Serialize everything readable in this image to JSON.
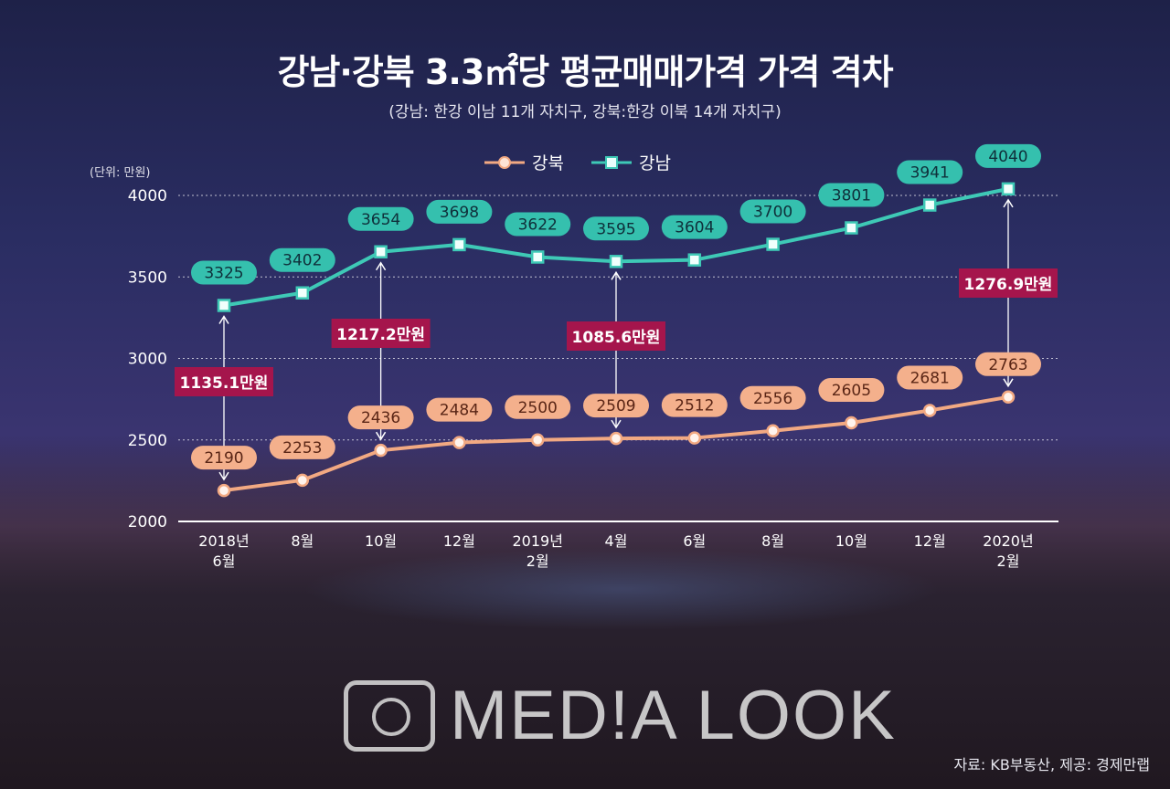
{
  "chart_data": {
    "type": "line",
    "title": "강남·강북 3.3㎡당 평균매매가격 가격 격차",
    "subtitle": "(강남: 한강 이남 11개 자치구, 강북:한강 이북 14개 자치구)",
    "unit_label": "(단위: 만원)",
    "categories": [
      "2018년\n6월",
      "8월",
      "10월",
      "12월",
      "2019년\n2월",
      "4월",
      "6월",
      "8월",
      "10월",
      "12월",
      "2020년\n2월"
    ],
    "series": [
      {
        "name": "강북",
        "color": "#f2a982",
        "values": [
          2190,
          2253,
          2436,
          2484,
          2500,
          2509,
          2512,
          2556,
          2605,
          2681,
          2763
        ]
      },
      {
        "name": "강남",
        "color": "#3ec9b6",
        "values": [
          3325,
          3402,
          3654,
          3698,
          3622,
          3595,
          3604,
          3700,
          3801,
          3941,
          4040
        ]
      }
    ],
    "gaps": [
      {
        "index": 0,
        "label": "1135.1만원"
      },
      {
        "index": 2,
        "label": "1217.2만원"
      },
      {
        "index": 5,
        "label": "1085.6만원"
      },
      {
        "index": 10,
        "label": "1276.9만원"
      }
    ],
    "ylim": [
      2000,
      4000
    ],
    "yticks": [
      2000,
      2500,
      3000,
      3500,
      4000
    ],
    "grid": true,
    "legend_position": "top"
  },
  "gap_color": "#a5154c",
  "source": "자료: KB부동산, 제공: 경제만랩",
  "watermark": "MEDIALOOK"
}
